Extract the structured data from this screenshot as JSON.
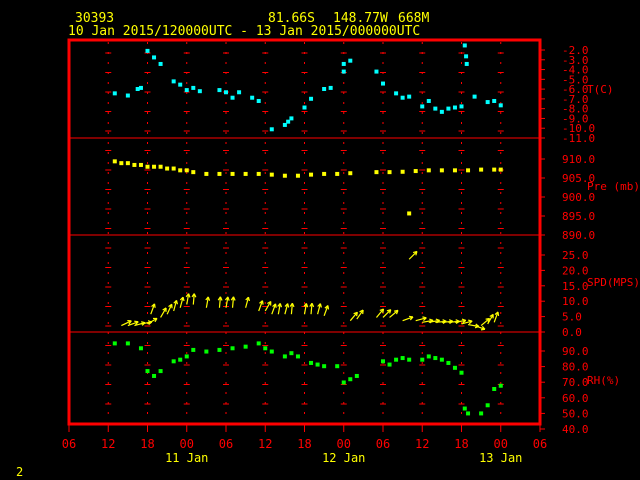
{
  "header": {
    "station_id": "30393",
    "latitude": "81.66S",
    "longitude": "148.77W",
    "elevation": "668M",
    "time_range": "10 Jan 2015/120000UTC - 13 Jan 2015/000000UTC"
  },
  "footer": {
    "page_number": "2"
  },
  "colors": {
    "background": "#000000",
    "frame": "#ff0000",
    "grid": "#ff0000",
    "header_text": "#ffff00",
    "axis_text": "#ff0000",
    "temperature": "#00ffff",
    "pressure": "#ffff00",
    "wind": "#ffff00",
    "humidity": "#00ff00"
  },
  "chart_data": {
    "type": "scatter",
    "x_axis": {
      "tick_labels": [
        "06",
        "12",
        "18",
        "00",
        "06",
        "12",
        "18",
        "00",
        "06",
        "12",
        "18",
        "00",
        "06"
      ],
      "day_labels": [
        {
          "label": "11 Jan",
          "hour": 24
        },
        {
          "label": "12 Jan",
          "hour": 48
        },
        {
          "label": "13 Jan",
          "hour": 72
        }
      ],
      "range_hours": [
        6,
        78
      ]
    },
    "panels": [
      {
        "key": "temperature",
        "label": "T(C)",
        "ylim": [
          -11,
          -2
        ],
        "ticks": [
          "-2.0",
          "-3.0",
          "-4.0",
          "-5.0",
          "-6.0",
          "-7.0",
          "-8.0",
          "-9.0",
          "-10.0",
          "-11.0"
        ],
        "points": [
          [
            13,
            -6.9
          ],
          [
            15,
            -7.1
          ],
          [
            16.5,
            -6.5
          ],
          [
            17,
            -6.4
          ],
          [
            18,
            -3.0
          ],
          [
            19,
            -3.6
          ],
          [
            20,
            -4.2
          ],
          [
            22,
            -5.8
          ],
          [
            23,
            -6.1
          ],
          [
            24,
            -6.6
          ],
          [
            25,
            -6.4
          ],
          [
            26,
            -6.7
          ],
          [
            29,
            -6.6
          ],
          [
            30,
            -6.8
          ],
          [
            31,
            -7.3
          ],
          [
            32,
            -6.8
          ],
          [
            34,
            -7.3
          ],
          [
            35,
            -7.6
          ],
          [
            37,
            -10.2
          ],
          [
            39,
            -9.8
          ],
          [
            39.5,
            -9.5
          ],
          [
            40,
            -9.2
          ],
          [
            42,
            -8.2
          ],
          [
            43,
            -7.4
          ],
          [
            45,
            -6.5
          ],
          [
            46,
            -6.4
          ],
          [
            48,
            -4.2
          ],
          [
            48,
            -4.9
          ],
          [
            49,
            -3.9
          ],
          [
            53,
            -4.9
          ],
          [
            54,
            -6.0
          ],
          [
            56,
            -6.9
          ],
          [
            57,
            -7.3
          ],
          [
            58,
            -7.2
          ],
          [
            60,
            -8.1
          ],
          [
            61,
            -7.6
          ],
          [
            62,
            -8.3
          ],
          [
            63,
            -8.6
          ],
          [
            64,
            -8.3
          ],
          [
            65,
            -8.2
          ],
          [
            66,
            -8.1
          ],
          [
            66.5,
            -2.5
          ],
          [
            66.7,
            -3.5
          ],
          [
            66.8,
            -4.2
          ],
          [
            68,
            -7.2
          ],
          [
            70,
            -7.7
          ],
          [
            71,
            -7.6
          ],
          [
            72,
            -8.0
          ]
        ]
      },
      {
        "key": "pressure",
        "label": "Pre (mb)",
        "ylim": [
          887,
          914
        ],
        "ticks": [
          "910.0",
          "905.0",
          "900.0",
          "895.0",
          "890.0"
        ],
        "points": [
          [
            13,
            907.5
          ],
          [
            14,
            907
          ],
          [
            15,
            907
          ],
          [
            16,
            906.5
          ],
          [
            17,
            906.5
          ],
          [
            18,
            906
          ],
          [
            19,
            906
          ],
          [
            20,
            906
          ],
          [
            21,
            905.5
          ],
          [
            22,
            905.5
          ],
          [
            23,
            905
          ],
          [
            24,
            905
          ],
          [
            25,
            904.5
          ],
          [
            27,
            904
          ],
          [
            29,
            904
          ],
          [
            31,
            904
          ],
          [
            33,
            904
          ],
          [
            35,
            904
          ],
          [
            37,
            903.8
          ],
          [
            39,
            903.5
          ],
          [
            41,
            903.5
          ],
          [
            43,
            903.8
          ],
          [
            45,
            904
          ],
          [
            47,
            904
          ],
          [
            49,
            904.2
          ],
          [
            53,
            904.5
          ],
          [
            55,
            904.5
          ],
          [
            57,
            904.6
          ],
          [
            58,
            893
          ],
          [
            59,
            904.8
          ],
          [
            61,
            905
          ],
          [
            63,
            905
          ],
          [
            65,
            905
          ],
          [
            67,
            905
          ],
          [
            69,
            905.2
          ],
          [
            71,
            905.2
          ],
          [
            72,
            905.2
          ]
        ]
      },
      {
        "key": "wind",
        "label": "SPD(MPS)",
        "ylim": [
          -1.5,
          28.5
        ],
        "ticks": [
          "25.0",
          "20.0",
          "15.0",
          "10.0",
          "5.0",
          "0.0"
        ],
        "points": [
          [
            14,
            0.5,
            65
          ],
          [
            15,
            0.5,
            70
          ],
          [
            16,
            0.5,
            75
          ],
          [
            17,
            1,
            80
          ],
          [
            18,
            1,
            60
          ],
          [
            18.5,
            4,
            20
          ],
          [
            20,
            3,
            30
          ],
          [
            21,
            4,
            25
          ],
          [
            22,
            5,
            15
          ],
          [
            23,
            6,
            15
          ],
          [
            24,
            7,
            10
          ],
          [
            25,
            7,
            5
          ],
          [
            27,
            6,
            10
          ],
          [
            29,
            6,
            5
          ],
          [
            30,
            6,
            10
          ],
          [
            31,
            6,
            5
          ],
          [
            33,
            6,
            15
          ],
          [
            35,
            5,
            20
          ],
          [
            36,
            5,
            30
          ],
          [
            37,
            4,
            20
          ],
          [
            38,
            4,
            10
          ],
          [
            39,
            4,
            15
          ],
          [
            40,
            4,
            5
          ],
          [
            42,
            4,
            10
          ],
          [
            43,
            4,
            5
          ],
          [
            44,
            4,
            15
          ],
          [
            45,
            3.5,
            20
          ],
          [
            49,
            2,
            40
          ],
          [
            50,
            2.5,
            35
          ],
          [
            53,
            3,
            40
          ],
          [
            54,
            3,
            45
          ],
          [
            55,
            3,
            50
          ],
          [
            57,
            2,
            70
          ],
          [
            58,
            21,
            45
          ],
          [
            59,
            2,
            75
          ],
          [
            60,
            1.5,
            80
          ],
          [
            61,
            1.5,
            80
          ],
          [
            62,
            1.5,
            85
          ],
          [
            63,
            1.5,
            85
          ],
          [
            64,
            1.5,
            85
          ],
          [
            65,
            1.5,
            80
          ],
          [
            66,
            1,
            75
          ],
          [
            67,
            0.8,
            100
          ],
          [
            68,
            0.5,
            110
          ],
          [
            69,
            0.5,
            50
          ],
          [
            70,
            1,
            30
          ],
          [
            71,
            1.5,
            20
          ]
        ]
      },
      {
        "key": "humidity",
        "label": "RH(%)",
        "ylim": [
          38.5,
          95
        ],
        "ticks": [
          "90.0",
          "80.0",
          "70.0",
          "60.0",
          "50.0",
          "40.0"
        ],
        "points": [
          [
            13,
            88
          ],
          [
            15,
            88
          ],
          [
            17,
            85
          ],
          [
            18,
            71
          ],
          [
            19,
            68
          ],
          [
            20,
            71
          ],
          [
            22,
            77
          ],
          [
            23,
            78
          ],
          [
            24,
            80
          ],
          [
            25,
            84
          ],
          [
            27,
            83
          ],
          [
            29,
            84
          ],
          [
            31,
            85
          ],
          [
            33,
            86
          ],
          [
            35,
            88
          ],
          [
            36,
            85
          ],
          [
            37,
            83
          ],
          [
            39,
            80
          ],
          [
            40,
            82
          ],
          [
            41,
            80
          ],
          [
            43,
            76
          ],
          [
            44,
            75
          ],
          [
            45,
            74
          ],
          [
            47,
            74
          ],
          [
            48,
            64
          ],
          [
            49,
            66
          ],
          [
            50,
            68
          ],
          [
            54,
            77
          ],
          [
            55,
            75
          ],
          [
            56,
            78
          ],
          [
            57,
            79
          ],
          [
            58,
            78
          ],
          [
            60,
            78
          ],
          [
            61,
            80
          ],
          [
            62,
            79
          ],
          [
            63,
            78
          ],
          [
            64,
            76
          ],
          [
            65,
            73
          ],
          [
            66,
            70
          ],
          [
            66.5,
            48
          ],
          [
            67,
            45
          ],
          [
            69,
            45
          ],
          [
            70,
            50
          ],
          [
            71,
            60
          ],
          [
            72,
            62
          ]
        ]
      }
    ]
  }
}
